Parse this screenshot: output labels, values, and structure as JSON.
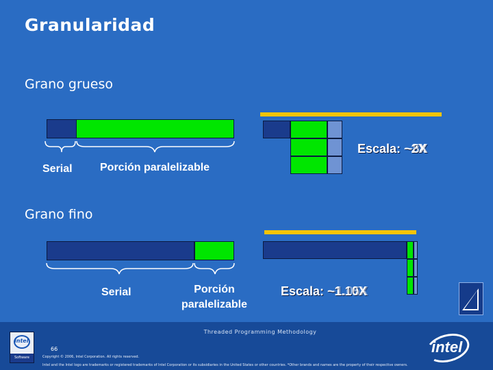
{
  "slide": {
    "title": "Granularidad",
    "coarse": {
      "heading": "Grano grueso",
      "serial_label": "Serial",
      "parallel_label": "Porción paralelizable",
      "scale_text": "Escala: ~2X",
      "scale_overlay": "~3X",
      "scale_overlay2": "~5X"
    },
    "fine": {
      "heading": "Grano fino",
      "serial_label": "Serial",
      "parallel_label_1": "Porción",
      "parallel_label_2": "paralelizable",
      "scale_text": "Escala: ~1.10X",
      "scale_overlay": "~1.05X"
    },
    "footer": {
      "methodology": "Threaded Programming Methodology",
      "page_number": "66",
      "copyright": "Copyright © 2006, Intel Corporation. All rights reserved.",
      "legal": "Intel and the Intel logo are trademarks or registered trademarks of Intel Corporation or its subsidiaries in the United States or other countries. *Other brands and names are the property of their respective owners.",
      "badge_logo": "intel",
      "badge_text": "Software",
      "logo_text": "intel"
    }
  },
  "colors": {
    "background": "#2a6cc3",
    "serial": "#1a3b8c",
    "parallel": "#00e600",
    "idle": "#6f93d3",
    "bar": "#f5c400"
  },
  "icons": [
    "intel-software-badge-icon",
    "intel-logo-icon",
    "play-triangle-icon"
  ]
}
